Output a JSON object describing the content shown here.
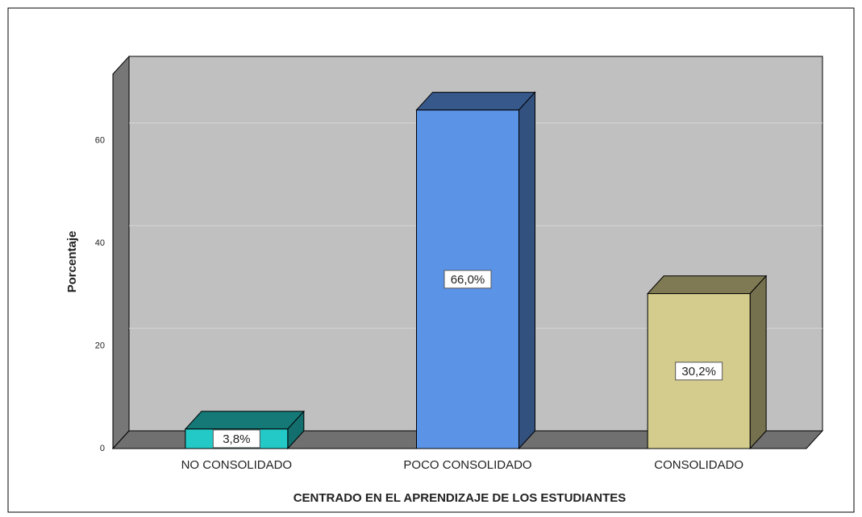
{
  "chart_data": {
    "type": "bar3d",
    "xlabel": "CENTRADO EN EL APRENDIZAJE DE LOS ESTUDIANTES",
    "ylabel": "Porcentaje",
    "categories": [
      "NO CONSOLIDADO",
      "POCO CONSOLIDADO",
      "CONSOLIDADO"
    ],
    "values": [
      3.8,
      66.0,
      30.2
    ],
    "value_labels": [
      "3,8%",
      "66,0%",
      "30,2%"
    ],
    "colors": [
      "#22c9c6",
      "#5b93e6",
      "#d4cc8c"
    ],
    "ylim": [
      0,
      73
    ],
    "yticks": [
      0,
      20,
      40,
      60
    ],
    "grid": true
  }
}
